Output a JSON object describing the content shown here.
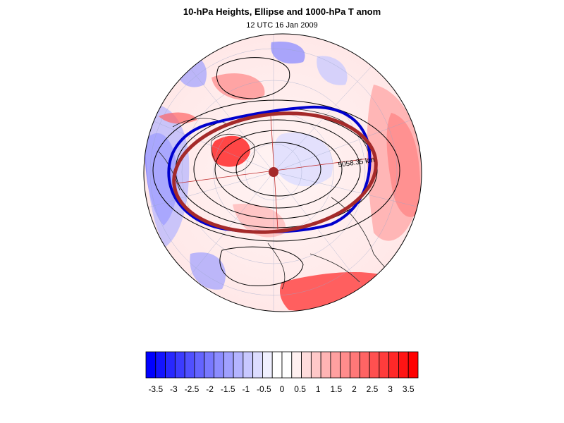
{
  "title": "10-hPa Heights, Ellipse and 1000-hPa T anom",
  "subtitle": "12 UTC 16 Jan 2009",
  "map": {
    "projection": "polar stereographic (north pole)",
    "ellipse_label": "5058.35 km",
    "colors": {
      "ellipse": "#a52a2a",
      "vortex_edge": "#0000cd",
      "contour": "#000000",
      "coast": "#222222"
    }
  },
  "colorbar": {
    "tick_labels": [
      "-3.5",
      "-3",
      "-2.5",
      "-2",
      "-1.5",
      "-1",
      "-0.5",
      "0",
      "0.5",
      "1",
      "1.5",
      "2",
      "2.5",
      "3",
      "3.5"
    ],
    "colors": [
      "#0000ff",
      "#1414ff",
      "#2828ff",
      "#3c3cff",
      "#5050ff",
      "#6464ff",
      "#7878ff",
      "#8c8cff",
      "#a0a0ff",
      "#b4b4ff",
      "#c8c8ff",
      "#dcdcff",
      "#f0f0ff",
      "#ffffff",
      "#ffffff",
      "#fff0f0",
      "#ffdcdc",
      "#ffc8c8",
      "#ffb4b4",
      "#ffa0a0",
      "#ff8c8c",
      "#ff7878",
      "#ff6464",
      "#ff5050",
      "#ff3c3c",
      "#ff2828",
      "#ff1414",
      "#ff0000"
    ]
  }
}
